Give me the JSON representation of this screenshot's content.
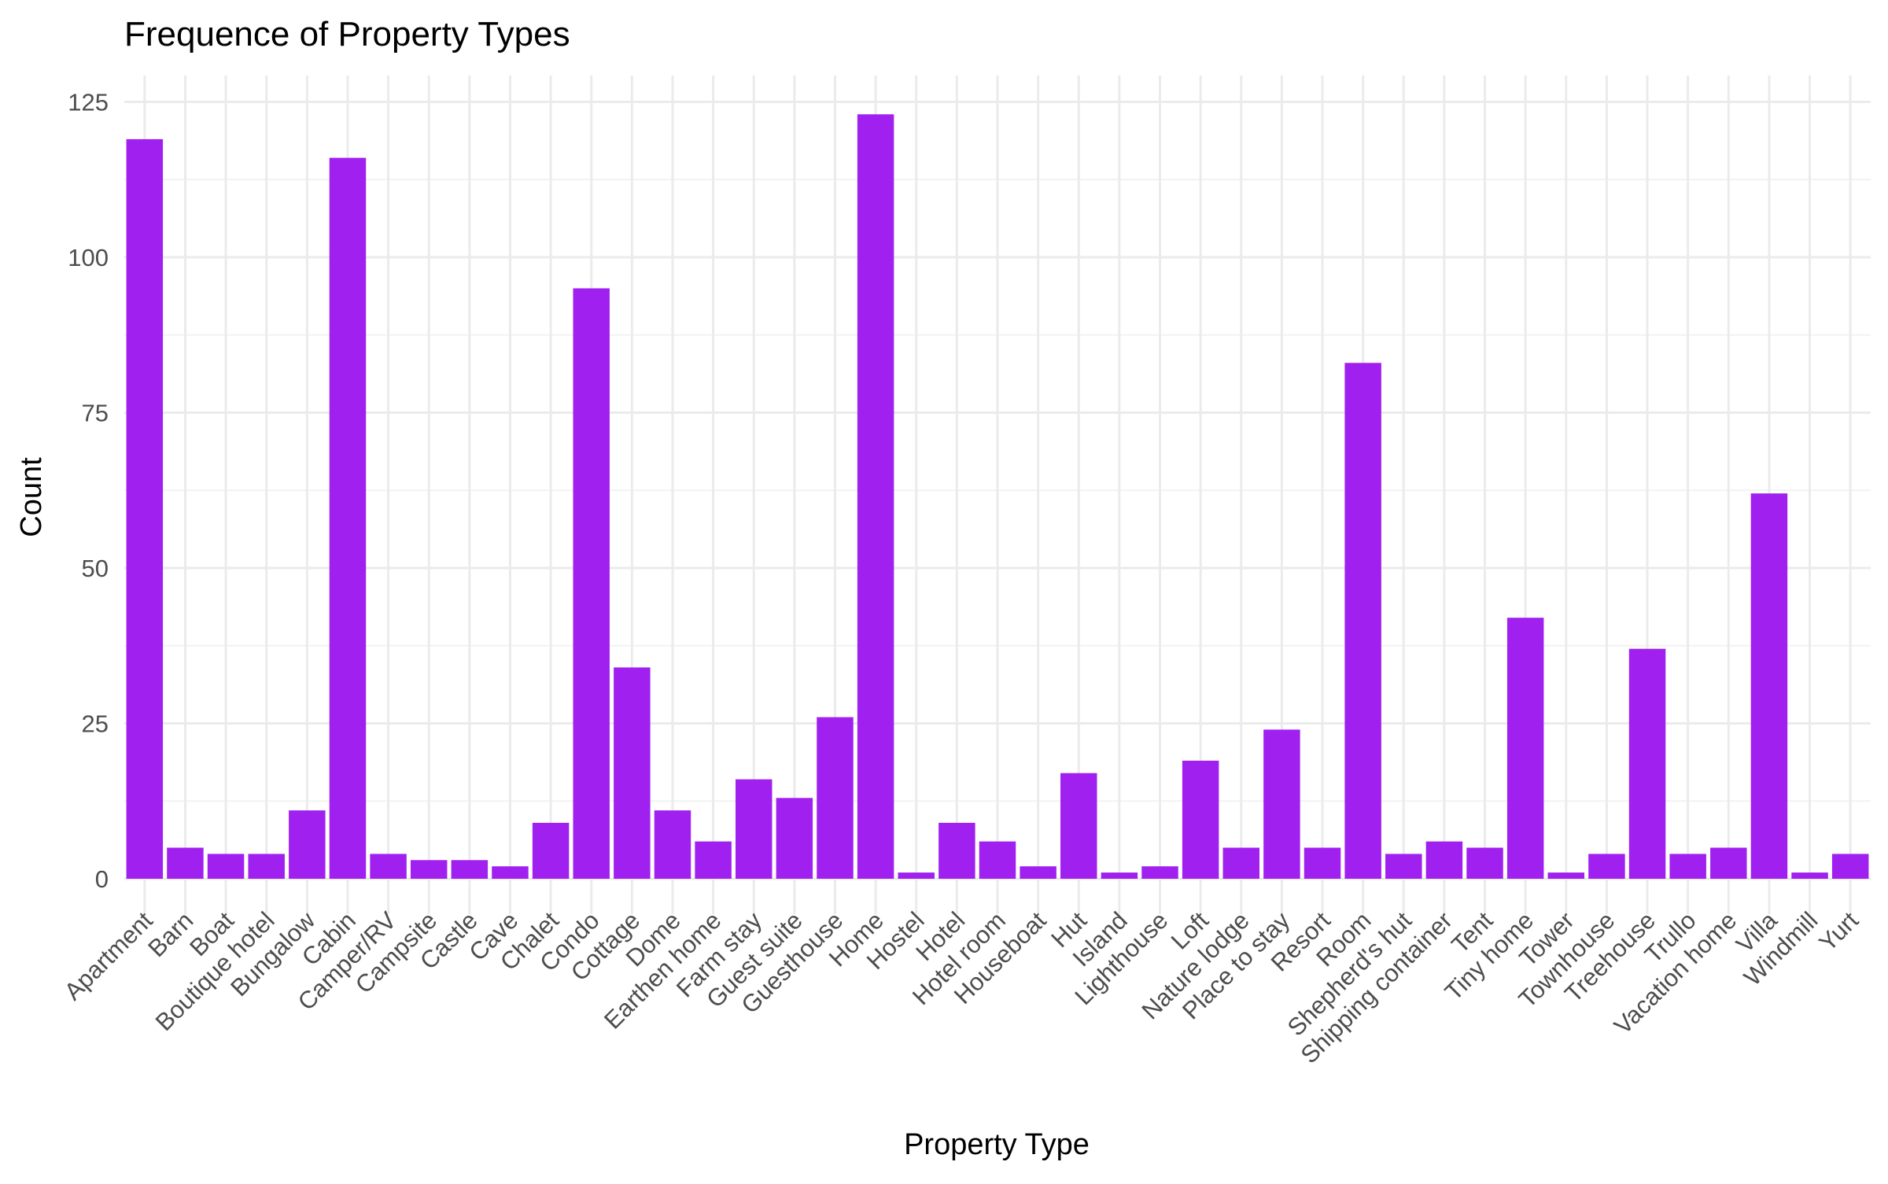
{
  "chart_data": {
    "type": "bar",
    "title": "Frequence of Property Types",
    "xlabel": "Property Type",
    "ylabel": "Count",
    "ylim": [
      0,
      127
    ],
    "yticks": [
      0,
      25,
      50,
      75,
      100,
      125
    ],
    "grid": true,
    "bar_color": "#A020F0",
    "categories": [
      "Apartment",
      "Barn",
      "Boat",
      "Boutique hotel",
      "Bungalow",
      "Cabin",
      "Camper/RV",
      "Campsite",
      "Castle",
      "Cave",
      "Chalet",
      "Condo",
      "Cottage",
      "Dome",
      "Earthen home",
      "Farm stay",
      "Guest suite",
      "Guesthouse",
      "Home",
      "Hostel",
      "Hotel",
      "Hotel room",
      "Houseboat",
      "Hut",
      "Island",
      "Lighthouse",
      "Loft",
      "Nature lodge",
      "Place to stay",
      "Resort",
      "Room",
      "Shepherd's hut",
      "Shipping container",
      "Tent",
      "Tiny home",
      "Tower",
      "Townhouse",
      "Treehouse",
      "Trullo",
      "Vacation home",
      "Villa",
      "Windmill",
      "Yurt"
    ],
    "values": [
      119,
      5,
      4,
      4,
      11,
      116,
      4,
      3,
      3,
      2,
      9,
      95,
      34,
      11,
      6,
      16,
      13,
      26,
      123,
      1,
      9,
      6,
      2,
      17,
      1,
      2,
      19,
      5,
      24,
      5,
      83,
      4,
      6,
      5,
      42,
      1,
      4,
      37,
      4,
      5,
      62,
      1,
      4
    ]
  }
}
